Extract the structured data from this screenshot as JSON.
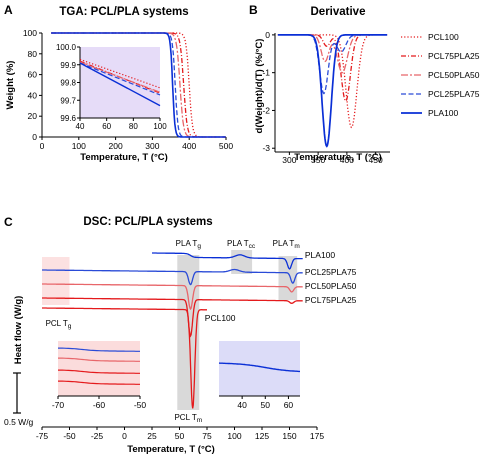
{
  "panels": {
    "a": {
      "label": "A",
      "title": "TGA: PCL/PLA systems",
      "xlabel": "Temperature, T (°C)",
      "ylabel": "Weight (%)"
    },
    "b": {
      "label": "B",
      "title": "Derivative",
      "xlabel": "Temperature, T (°C)",
      "ylabel": "d(Weight)/d(T) (%/°C)"
    },
    "c": {
      "label": "C",
      "title": "DSC: PCL/PLA systems",
      "xlabel": "Temperature, T (°C)",
      "ylabel": "Heat flow (W/g)",
      "scalebar": "0.5 W/g"
    }
  },
  "colors": {
    "PCL100": "#e41a1c",
    "PCL75PLA25": "#e41a1c",
    "PCL50PLA50": "#e8666a",
    "PCL25PLA75": "#2a4bd7",
    "PLA100": "#0a2fd6",
    "tga_inset_bg": "#e6dcf8",
    "dsc_pink": "#fbdcdc",
    "dsc_blue": "#dcdcf8",
    "dsc_gray": "#d9d9d9"
  },
  "chart_data": [
    {
      "type": "line",
      "panel": "A",
      "title": "TGA: PCL/PLA systems",
      "xlabel": "Temperature, T (°C)",
      "ylabel": "Weight (%)",
      "xlim": [
        0,
        500
      ],
      "ylim": [
        0,
        100
      ],
      "xticks": [
        "0",
        "100",
        "200",
        "300",
        "400",
        "500"
      ],
      "yticks": [
        "0",
        "20",
        "40",
        "60",
        "80",
        "100"
      ],
      "series": [
        {
          "name": "PCL100",
          "style": "dotted",
          "onset": 400,
          "width": 14
        },
        {
          "name": "PCL75PLA25",
          "style": "dashdot",
          "onset": 385,
          "width": 15
        },
        {
          "name": "PCL50PLA50",
          "style": "dashdot2",
          "onset": 375,
          "width": 15
        },
        {
          "name": "PCL25PLA75",
          "style": "dashed",
          "onset": 362,
          "width": 12
        },
        {
          "name": "PLA100",
          "style": "solid",
          "onset": 355,
          "width": 10
        }
      ],
      "inset": {
        "xlim": [
          40,
          100
        ],
        "ylim": [
          99.6,
          100.0
        ],
        "xticks": [
          "40",
          "60",
          "80",
          "100"
        ],
        "yticks": [
          "99.6",
          "99.7",
          "99.8",
          "99.9",
          "100.0"
        ],
        "series": [
          {
            "name": "PCL100",
            "x": [
              40,
              100
            ],
            "y": [
              99.93,
              99.77
            ]
          },
          {
            "name": "PCL75PLA25",
            "x": [
              40,
              100
            ],
            "y": [
              99.92,
              99.74
            ]
          },
          {
            "name": "PCL50PLA50",
            "x": [
              40,
              100
            ],
            "y": [
              99.915,
              99.745
            ]
          },
          {
            "name": "PCL25PLA75",
            "x": [
              40,
              100
            ],
            "y": [
              99.91,
              99.73
            ]
          },
          {
            "name": "PLA100",
            "x": [
              40,
              100
            ],
            "y": [
              99.91,
              99.67
            ]
          }
        ]
      }
    },
    {
      "type": "line",
      "panel": "B",
      "title": "Derivative",
      "xlabel": "Temperature, T (°C)",
      "ylabel": "d(Weight)/d(T) (%/°C)",
      "xlim": [
        275,
        475
      ],
      "ylim": [
        -3.1,
        0.05
      ],
      "xticks": [
        "300",
        "350",
        "400",
        "450"
      ],
      "yticks": [
        "0",
        "-1",
        "-2",
        "-3"
      ],
      "legend": "right",
      "series": [
        {
          "name": "PCL100",
          "style": "dotted",
          "peaks": [
            {
              "center": 408,
              "depth": 2.45,
              "width": 14
            }
          ]
        },
        {
          "name": "PCL75PLA25",
          "style": "dashdot",
          "peaks": [
            {
              "center": 365,
              "depth": 0.3,
              "width": 9
            },
            {
              "center": 398,
              "depth": 1.75,
              "width": 12
            }
          ]
        },
        {
          "name": "PCL50PLA50",
          "style": "dashdot2",
          "peaks": [
            {
              "center": 362,
              "depth": 0.7,
              "width": 10
            },
            {
              "center": 392,
              "depth": 1.0,
              "width": 13
            }
          ]
        },
        {
          "name": "PCL25PLA75",
          "style": "dashed",
          "peaks": [
            {
              "center": 360,
              "depth": 1.55,
              "width": 11
            },
            {
              "center": 390,
              "depth": 0.45,
              "width": 12
            }
          ]
        },
        {
          "name": "PLA100",
          "style": "solid",
          "peaks": [
            {
              "center": 365,
              "depth": 2.95,
              "width": 12
            }
          ]
        }
      ]
    },
    {
      "type": "line",
      "panel": "C",
      "title": "DSC: PCL/PLA systems",
      "xlabel": "Temperature, T (°C)",
      "ylabel": "Heat flow (W/g)",
      "xlim": [
        -75,
        175
      ],
      "xticks": [
        "-75",
        "-50",
        "-25",
        "0",
        "25",
        "50",
        "75",
        "100",
        "125",
        "150",
        "175"
      ],
      "annotations": [
        "PLA Tg",
        "PLA Tcc",
        "PLA Tm",
        "PCL Tg",
        "PCL Tm",
        "PCL100"
      ],
      "series": [
        {
          "name": "PLA100",
          "offset": 0.0,
          "features": [
            {
              "type": "step",
              "at": 60
            },
            {
              "type": "bump",
              "center": 105,
              "height": 0.06
            },
            {
              "type": "peak",
              "center": 150,
              "depth": 0.2
            }
          ]
        },
        {
          "name": "PCL25PLA75",
          "offset": 0.3,
          "features": [
            {
              "type": "peak",
              "center": 60,
              "depth": 0.25
            },
            {
              "type": "bump",
              "center": 100,
              "height": 0.05
            },
            {
              "type": "peak",
              "center": 153,
              "depth": 0.2
            }
          ]
        },
        {
          "name": "PCL50PLA50",
          "offset": 0.55,
          "features": [
            {
              "type": "peak",
              "center": 60,
              "depth": 0.45
            },
            {
              "type": "peak",
              "center": 152,
              "depth": 0.1
            }
          ]
        },
        {
          "name": "PCL75PLA25",
          "offset": 0.78,
          "features": [
            {
              "type": "peak",
              "center": 60,
              "depth": 0.7
            },
            {
              "type": "peak",
              "center": 152,
              "depth": 0.05
            }
          ]
        },
        {
          "name": "PCL100",
          "offset": 0.92,
          "features": [
            {
              "type": "peak",
              "center": 62,
              "depth": 1.9
            }
          ]
        }
      ],
      "inset_left": {
        "xlim": [
          -70,
          -50
        ],
        "xticks": [
          "-70",
          "-60",
          "-50"
        ]
      },
      "inset_right": {
        "xlim": [
          30,
          65
        ],
        "xticks": [
          "40",
          "50",
          "60"
        ]
      }
    }
  ]
}
